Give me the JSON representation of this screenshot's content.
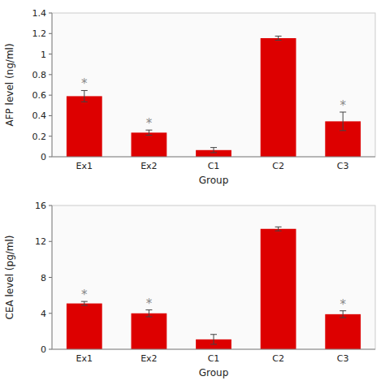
{
  "chart_data": [
    {
      "type": "bar",
      "categories": [
        "Ex1",
        "Ex2",
        "C1",
        "C2",
        "C3"
      ],
      "values": [
        0.59,
        0.235,
        0.065,
        1.155,
        0.345
      ],
      "errors": [
        0.055,
        0.025,
        0.025,
        0.02,
        0.09
      ],
      "annotations": [
        {
          "category": "Ex1",
          "text": "*"
        },
        {
          "category": "Ex2",
          "text": "*"
        },
        {
          "category": "C3",
          "text": "*"
        }
      ],
      "xlabel": "Group",
      "ylabel": "AFP level (ng/ml)",
      "ylim": [
        0,
        1.4
      ],
      "yticks": [
        0,
        0.2,
        0.4,
        0.6,
        0.8,
        1,
        1.2,
        1.4
      ],
      "color": "#dd0000",
      "grid": false
    },
    {
      "type": "bar",
      "categories": [
        "Ex1",
        "Ex2",
        "C1",
        "C2",
        "C3"
      ],
      "values": [
        5.1,
        4.0,
        1.1,
        13.4,
        3.9
      ],
      "errors": [
        0.22,
        0.38,
        0.55,
        0.22,
        0.38
      ],
      "annotations": [
        {
          "category": "Ex1",
          "text": "*"
        },
        {
          "category": "Ex2",
          "text": "*"
        },
        {
          "category": "C3",
          "text": "*"
        }
      ],
      "xlabel": "Group",
      "ylabel": "CEA level (pg/ml)",
      "ylim": [
        0,
        16
      ],
      "yticks": [
        0,
        4,
        8,
        12,
        16
      ],
      "color": "#dd0000",
      "grid": false
    }
  ]
}
